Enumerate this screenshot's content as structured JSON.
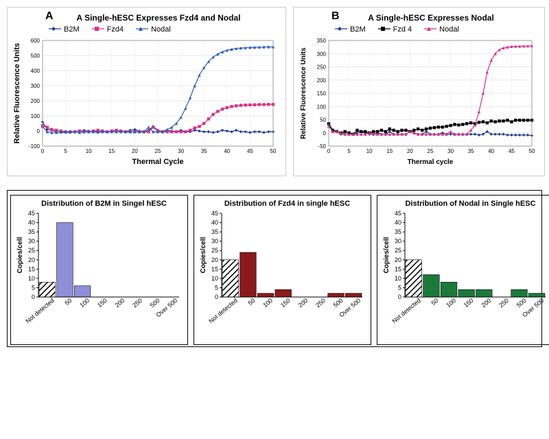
{
  "panels": {
    "A": {
      "title": "A Single-hESC Expresses Fzd4 and Nodal",
      "xlabel": "Thermal Cycle",
      "ylabel": "Relative Fluorescence Units",
      "ylim": [
        -100,
        600
      ],
      "ytick_step": 100,
      "xlim": [
        0,
        50
      ],
      "xtick_step": 5,
      "title_fontsize": 12,
      "label_fontsize": 11,
      "tick_fontsize": 8,
      "series": [
        {
          "name": "B2M",
          "color": "#1f3a93",
          "marker": "diamond",
          "y": [
            60,
            10,
            5,
            -5,
            -10,
            -10,
            -10,
            -5,
            -5,
            5,
            0,
            -5,
            -10,
            -5,
            -5,
            0,
            5,
            0,
            -5,
            5,
            10,
            0,
            -5,
            5,
            30,
            5,
            -5,
            5,
            0,
            -5,
            5,
            -5,
            -5,
            5,
            0,
            -5,
            -5,
            -10,
            -5,
            5,
            0,
            -5,
            5,
            -5,
            -5,
            -10,
            -5,
            -5,
            -10,
            -5,
            -5
          ]
        },
        {
          "name": "Fzd4",
          "color": "#d63384",
          "marker": "square",
          "y": [
            35,
            25,
            10,
            5,
            0,
            -5,
            -5,
            -5,
            0,
            -5,
            -5,
            0,
            5,
            0,
            -5,
            0,
            5,
            0,
            -5,
            -5,
            -5,
            -5,
            -5,
            -5,
            25,
            0,
            -5,
            -5,
            -5,
            -5,
            -5,
            -5,
            5,
            20,
            30,
            50,
            80,
            110,
            130,
            145,
            155,
            162,
            167,
            170,
            172,
            173,
            174,
            175,
            175,
            176,
            176
          ]
        },
        {
          "name": "Nodal",
          "color": "#2e5cb8",
          "marker": "triangle",
          "y": [
            30,
            -5,
            -10,
            -10,
            -5,
            -5,
            -5,
            -5,
            -10,
            -5,
            -5,
            -5,
            -5,
            -5,
            -5,
            -5,
            -5,
            -5,
            -5,
            -5,
            -5,
            -5,
            -5,
            25,
            -5,
            -5,
            -5,
            10,
            25,
            50,
            90,
            150,
            220,
            300,
            370,
            420,
            460,
            490,
            510,
            525,
            535,
            542,
            547,
            550,
            552,
            554,
            555,
            556,
            557,
            558,
            558
          ]
        }
      ]
    },
    "B": {
      "title": "A Single-hESC Expresses Nodal",
      "xlabel": "Thermal cycle",
      "ylabel": "Relative Fluorescence Units",
      "ylim": [
        -50,
        350
      ],
      "ytick_step": 50,
      "xlim": [
        0,
        50
      ],
      "xtick_step": 5,
      "title_fontsize": 12,
      "label_fontsize": 10,
      "tick_fontsize": 8,
      "series": [
        {
          "name": "B2M",
          "color": "#1f3a93",
          "marker": "diamond",
          "y": [
            30,
            10,
            5,
            -5,
            -5,
            -5,
            -5,
            0,
            5,
            0,
            -5,
            -5,
            0,
            -5,
            -5,
            5,
            -5,
            -5,
            -5,
            -5,
            5,
            0,
            -5,
            -5,
            5,
            -5,
            -5,
            -5,
            0,
            -5,
            -5,
            -5,
            -5,
            -5,
            -5,
            -5,
            -5,
            -8,
            -5,
            5,
            -5,
            -5,
            -5,
            -5,
            -8,
            -8,
            -8,
            -8,
            -8,
            -8,
            -10
          ]
        },
        {
          "name": "Fzd 4",
          "color": "#000000",
          "marker": "square",
          "y": [
            35,
            10,
            5,
            0,
            5,
            0,
            -5,
            10,
            5,
            5,
            0,
            5,
            5,
            10,
            5,
            15,
            10,
            5,
            10,
            10,
            5,
            10,
            15,
            10,
            15,
            18,
            20,
            22,
            22,
            25,
            28,
            32,
            30,
            32,
            35,
            38,
            35,
            40,
            42,
            38,
            45,
            42,
            45,
            45,
            48,
            42,
            48,
            48,
            48,
            48,
            48
          ]
        },
        {
          "name": "Nodal",
          "color": "#d63384",
          "marker": "triangle",
          "y": [
            25,
            5,
            5,
            0,
            -5,
            -5,
            -5,
            -5,
            -5,
            -5,
            0,
            -5,
            -5,
            -5,
            -5,
            -5,
            -5,
            -5,
            -5,
            -5,
            5,
            0,
            -5,
            -5,
            -5,
            -5,
            -5,
            -5,
            -5,
            -5,
            5,
            -5,
            -5,
            -5,
            -5,
            10,
            30,
            80,
            150,
            230,
            275,
            300,
            315,
            322,
            325,
            327,
            328,
            328,
            329,
            329,
            330
          ]
        }
      ]
    }
  },
  "histograms": {
    "common": {
      "categories": [
        "Not detected",
        "50",
        "100",
        "150",
        "200",
        "250",
        "500",
        "Over 500"
      ],
      "ylabel": "Copies/cell",
      "hatch_color": "#000000",
      "ylim": [
        0,
        45
      ],
      "ytick_step": 5,
      "title_fontsize": 11,
      "label_fontsize": 10,
      "tick_fontsize": 9,
      "label_rotation_deg": 40
    },
    "B2M": {
      "title": "Distribution of B2M in Singel hESC",
      "color": "#8e8ed9",
      "values": [
        8,
        40,
        6,
        0,
        0,
        0,
        0,
        0
      ]
    },
    "Fzd4": {
      "title": "Distribution of Fzd4 in single hESC",
      "color": "#8b1a1a",
      "values": [
        20,
        24,
        2,
        4,
        0,
        0,
        2,
        2
      ]
    },
    "Nodal": {
      "title": "Distribution of Nodal in Single hESC",
      "color": "#1b7a3a",
      "values": [
        20,
        12,
        8,
        4,
        4,
        0,
        4,
        2
      ]
    }
  }
}
